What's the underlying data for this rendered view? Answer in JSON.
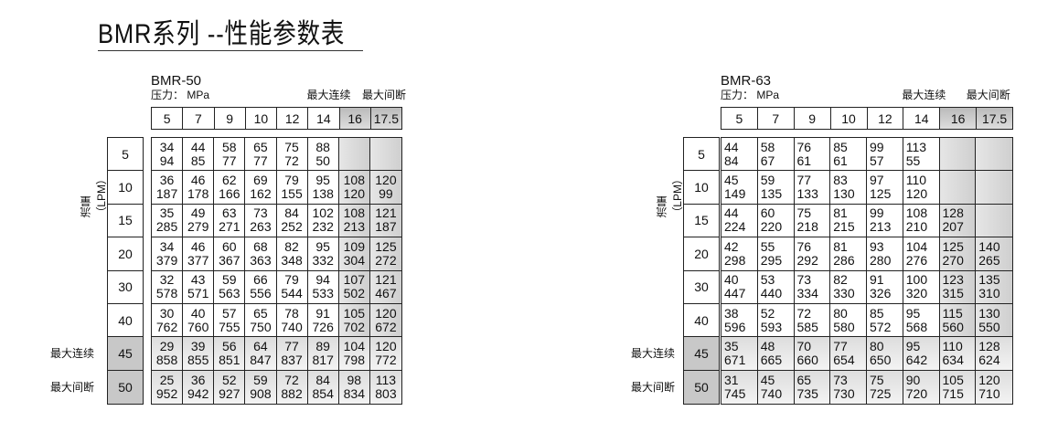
{
  "title": "BMR系列 --性能参数表",
  "tables": [
    {
      "model": "BMR-50",
      "unit": "压力： MPa",
      "max_cont": "最大连续",
      "max_int": "最大间断",
      "pressures": [
        "5",
        "7",
        "9",
        "10",
        "12",
        "14",
        "16",
        "17.5"
      ],
      "flow_label": "流量（LPM）",
      "row_max_cont": "最大连续",
      "row_max_int": "最大间断",
      "flows": [
        "5",
        "10",
        "15",
        "20",
        "30",
        "40",
        "45",
        "50"
      ],
      "cells": [
        [
          [
            "34",
            "94"
          ],
          [
            "44",
            "85"
          ],
          [
            "58",
            "77"
          ],
          [
            "65",
            "77"
          ],
          [
            "75",
            "72"
          ],
          [
            "88",
            "50"
          ],
          [
            "",
            ""
          ],
          [
            "",
            ""
          ]
        ],
        [
          [
            "36",
            "187"
          ],
          [
            "46",
            "178"
          ],
          [
            "62",
            "166"
          ],
          [
            "69",
            "162"
          ],
          [
            "79",
            "155"
          ],
          [
            "95",
            "138"
          ],
          [
            "108",
            "120"
          ],
          [
            "120",
            "99"
          ]
        ],
        [
          [
            "35",
            "285"
          ],
          [
            "49",
            "279"
          ],
          [
            "63",
            "271"
          ],
          [
            "73",
            "263"
          ],
          [
            "84",
            "252"
          ],
          [
            "102",
            "232"
          ],
          [
            "108",
            "213"
          ],
          [
            "121",
            "187"
          ]
        ],
        [
          [
            "34",
            "379"
          ],
          [
            "46",
            "377"
          ],
          [
            "60",
            "367"
          ],
          [
            "68",
            "363"
          ],
          [
            "82",
            "348"
          ],
          [
            "95",
            "332"
          ],
          [
            "109",
            "304"
          ],
          [
            "125",
            "272"
          ]
        ],
        [
          [
            "32",
            "578"
          ],
          [
            "43",
            "571"
          ],
          [
            "59",
            "563"
          ],
          [
            "66",
            "556"
          ],
          [
            "79",
            "544"
          ],
          [
            "94",
            "533"
          ],
          [
            "107",
            "502"
          ],
          [
            "121",
            "467"
          ]
        ],
        [
          [
            "30",
            "762"
          ],
          [
            "40",
            "760"
          ],
          [
            "57",
            "755"
          ],
          [
            "65",
            "750"
          ],
          [
            "78",
            "740"
          ],
          [
            "91",
            "726"
          ],
          [
            "105",
            "702"
          ],
          [
            "120",
            "672"
          ]
        ],
        [
          [
            "29",
            "858"
          ],
          [
            "39",
            "855"
          ],
          [
            "56",
            "851"
          ],
          [
            "64",
            "847"
          ],
          [
            "77",
            "837"
          ],
          [
            "89",
            "817"
          ],
          [
            "104",
            "798"
          ],
          [
            "120",
            "772"
          ]
        ],
        [
          [
            "25",
            "952"
          ],
          [
            "36",
            "942"
          ],
          [
            "52",
            "927"
          ],
          [
            "59",
            "908"
          ],
          [
            "72",
            "882"
          ],
          [
            "84",
            "854"
          ],
          [
            "98",
            "834"
          ],
          [
            "113",
            "803"
          ]
        ]
      ]
    },
    {
      "model": "BMR-63",
      "unit": "压力： MPa",
      "max_cont": "最大连续",
      "max_int": "最大间断",
      "pressures": [
        "5",
        "7",
        "9",
        "10",
        "12",
        "14",
        "16",
        "17.5"
      ],
      "flow_label": "流量（LPM）",
      "row_max_cont": "最大连续",
      "row_max_int": "最大间断",
      "flows": [
        "5",
        "10",
        "15",
        "20",
        "30",
        "40",
        "45",
        "50"
      ],
      "cells": [
        [
          [
            "44",
            "84"
          ],
          [
            "58",
            "67"
          ],
          [
            "76",
            "61"
          ],
          [
            "85",
            "61"
          ],
          [
            "99",
            "57"
          ],
          [
            "113",
            "55"
          ],
          [
            "",
            ""
          ],
          [
            "",
            ""
          ]
        ],
        [
          [
            "45",
            "149"
          ],
          [
            "59",
            "135"
          ],
          [
            "77",
            "133"
          ],
          [
            "83",
            "130"
          ],
          [
            "97",
            "125"
          ],
          [
            "110",
            "120"
          ],
          [
            "",
            ""
          ],
          [
            "",
            ""
          ]
        ],
        [
          [
            "44",
            "224"
          ],
          [
            "60",
            "220"
          ],
          [
            "75",
            "218"
          ],
          [
            "81",
            "215"
          ],
          [
            "99",
            "213"
          ],
          [
            "108",
            "210"
          ],
          [
            "128",
            "207"
          ],
          [
            "",
            ""
          ]
        ],
        [
          [
            "42",
            "298"
          ],
          [
            "55",
            "295"
          ],
          [
            "76",
            "292"
          ],
          [
            "81",
            "286"
          ],
          [
            "93",
            "280"
          ],
          [
            "104",
            "276"
          ],
          [
            "125",
            "270"
          ],
          [
            "140",
            "265"
          ]
        ],
        [
          [
            "40",
            "447"
          ],
          [
            "53",
            "440"
          ],
          [
            "73",
            "334"
          ],
          [
            "82",
            "330"
          ],
          [
            "91",
            "326"
          ],
          [
            "100",
            "320"
          ],
          [
            "123",
            "315"
          ],
          [
            "135",
            "310"
          ]
        ],
        [
          [
            "38",
            "596"
          ],
          [
            "52",
            "593"
          ],
          [
            "72",
            "585"
          ],
          [
            "80",
            "580"
          ],
          [
            "85",
            "572"
          ],
          [
            "95",
            "568"
          ],
          [
            "115",
            "560"
          ],
          [
            "130",
            "550"
          ]
        ],
        [
          [
            "35",
            "671"
          ],
          [
            "48",
            "665"
          ],
          [
            "70",
            "660"
          ],
          [
            "77",
            "654"
          ],
          [
            "80",
            "650"
          ],
          [
            "95",
            "642"
          ],
          [
            "110",
            "634"
          ],
          [
            "128",
            "624"
          ]
        ],
        [
          [
            "31",
            "745"
          ],
          [
            "45",
            "740"
          ],
          [
            "65",
            "735"
          ],
          [
            "73",
            "730"
          ],
          [
            "75",
            "725"
          ],
          [
            "90",
            "720"
          ],
          [
            "105",
            "715"
          ],
          [
            "120",
            "710"
          ]
        ]
      ]
    }
  ]
}
